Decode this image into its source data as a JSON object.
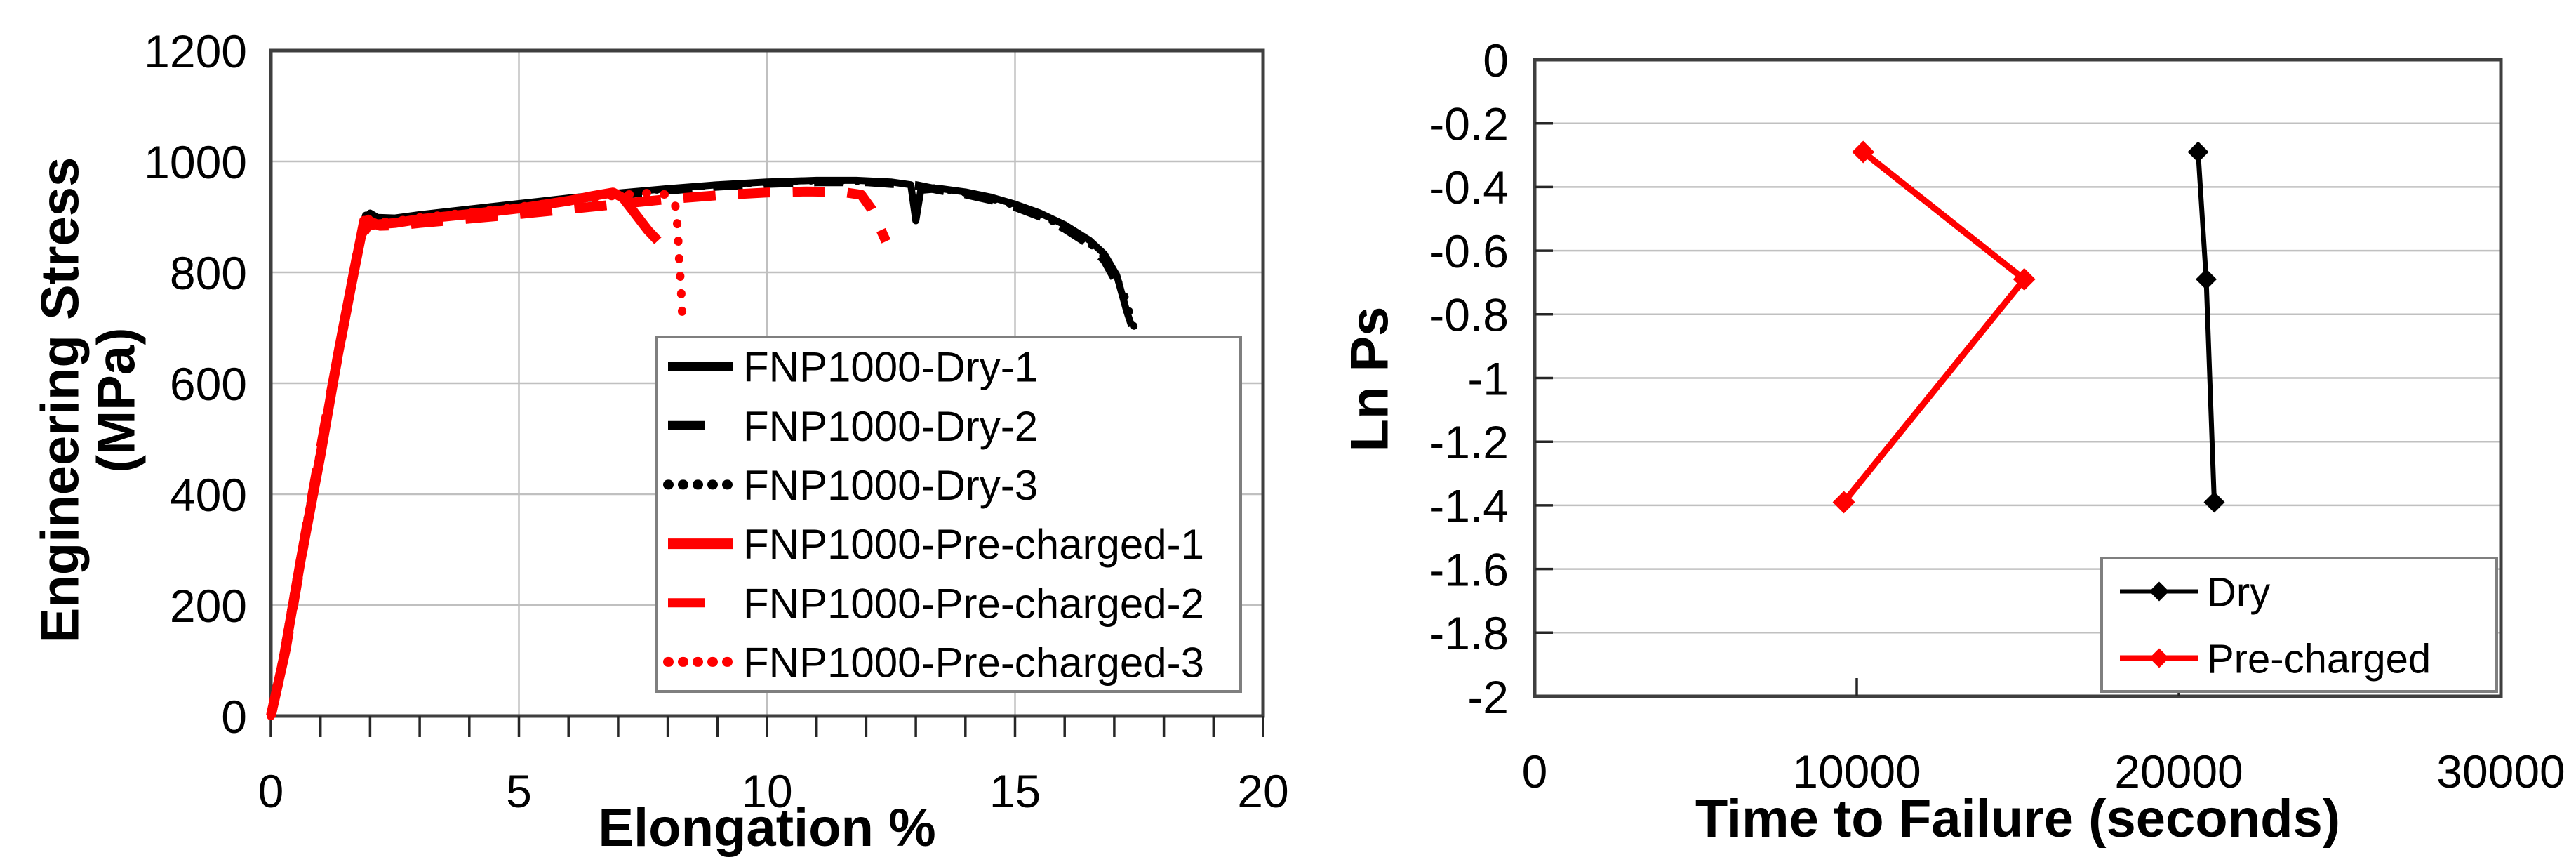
{
  "figure": {
    "description": "Two-panel tensile test figure",
    "background": "#ffffff"
  },
  "colors": {
    "dry_series": "#000000",
    "precharged_series": "#ff0000",
    "grid": "#c0c0c0",
    "frame": "#3f3f3f",
    "tick": "#262626",
    "text": "#000000",
    "legend_border": "#7f7f7f",
    "legend_bg": "#ffffff"
  },
  "chart_data": [
    {
      "id": "stress-strain",
      "type": "line",
      "title": "",
      "xlabel": "Elongation %",
      "ylabel": "Engineering Stress",
      "ylabel_line2": "(MPa)",
      "xlim": [
        0,
        20
      ],
      "ylim": [
        0,
        1200
      ],
      "xticks": [
        0,
        5,
        10,
        15,
        20
      ],
      "xtick_labels": [
        "0",
        "5",
        "10",
        "15",
        "20"
      ],
      "x_minor_step": 1,
      "yticks": [
        0,
        200,
        400,
        600,
        800,
        1000,
        1200
      ],
      "ytick_labels": [
        "0",
        "200",
        "400",
        "600",
        "800",
        "1000",
        "1200"
      ],
      "grid": true,
      "grid_x": [
        5,
        10,
        15
      ],
      "grid_y": [
        200,
        400,
        600,
        800,
        1000
      ],
      "legend_position": "inside-bottom-right",
      "series": [
        {
          "name": "FNP1000-Dry-1",
          "color": "#000000",
          "style": "solid",
          "width": 10,
          "points": [
            [
              0,
              0
            ],
            [
              0.25,
              110
            ],
            [
              0.6,
              290
            ],
            [
              1.0,
              480
            ],
            [
              1.4,
              680
            ],
            [
              1.7,
              820
            ],
            [
              1.9,
              890
            ],
            [
              2.0,
              907
            ],
            [
              2.15,
              899
            ],
            [
              2.5,
              898
            ],
            [
              3,
              904
            ],
            [
              4,
              914
            ],
            [
              5,
              924
            ],
            [
              6,
              934
            ],
            [
              7,
              943
            ],
            [
              8,
              951
            ],
            [
              9,
              958
            ],
            [
              10,
              963
            ],
            [
              11,
              966
            ],
            [
              11.8,
              966
            ],
            [
              12.5,
              963
            ],
            [
              12.9,
              958
            ],
            [
              13.0,
              893
            ],
            [
              13.1,
              948
            ],
            [
              13.5,
              951
            ],
            [
              14,
              945
            ],
            [
              14.5,
              936
            ],
            [
              15,
              923
            ],
            [
              15.5,
              907
            ],
            [
              16,
              886
            ],
            [
              16.5,
              858
            ],
            [
              16.8,
              833
            ],
            [
              17.05,
              795
            ],
            [
              17.25,
              730
            ],
            [
              17.35,
              703
            ]
          ]
        },
        {
          "name": "FNP1000-Dry-2",
          "color": "#000000",
          "style": "dashed",
          "width": 12,
          "points": [
            [
              0,
              0
            ],
            [
              0.25,
              105
            ],
            [
              0.6,
              285
            ],
            [
              1.0,
              475
            ],
            [
              1.4,
              672
            ],
            [
              1.7,
              815
            ],
            [
              1.92,
              902
            ],
            [
              2.1,
              894
            ],
            [
              2.5,
              895
            ],
            [
              3,
              901
            ],
            [
              4,
              911
            ],
            [
              5,
              921
            ],
            [
              6,
              931
            ],
            [
              7,
              940
            ],
            [
              8,
              948
            ],
            [
              9,
              955
            ],
            [
              10,
              960
            ],
            [
              11,
              963
            ],
            [
              12,
              963
            ],
            [
              13,
              957
            ],
            [
              13.5,
              948
            ],
            [
              14,
              941
            ],
            [
              14.5,
              931
            ],
            [
              15,
              918
            ],
            [
              15.5,
              901
            ],
            [
              16,
              879
            ],
            [
              16.4,
              856
            ],
            [
              16.8,
              822
            ],
            [
              17.0,
              790
            ]
          ]
        },
        {
          "name": "FNP1000-Dry-3",
          "color": "#000000",
          "style": "dotted",
          "width": 10,
          "points": [
            [
              0,
              0
            ],
            [
              0.25,
              115
            ],
            [
              0.6,
              295
            ],
            [
              1.0,
              485
            ],
            [
              1.4,
              685
            ],
            [
              1.7,
              825
            ],
            [
              1.95,
              905
            ],
            [
              2.12,
              897
            ],
            [
              2.5,
              897
            ],
            [
              3,
              903
            ],
            [
              4,
              913
            ],
            [
              5,
              923
            ],
            [
              6,
              933
            ],
            [
              7,
              942
            ],
            [
              8,
              950
            ],
            [
              9,
              957
            ],
            [
              10,
              962
            ],
            [
              11,
              965
            ],
            [
              12,
              964
            ],
            [
              13,
              958
            ],
            [
              13.6,
              949
            ],
            [
              14,
              943
            ],
            [
              14.5,
              933
            ],
            [
              15,
              920
            ],
            [
              15.5,
              903
            ],
            [
              16,
              881
            ],
            [
              16.5,
              852
            ],
            [
              16.9,
              818
            ],
            [
              17.2,
              762
            ],
            [
              17.45,
              688
            ]
          ]
        },
        {
          "name": "FNP1000-Pre-charged-1",
          "color": "#ff0000",
          "style": "solid",
          "width": 14,
          "points": [
            [
              0,
              0
            ],
            [
              0.25,
              100
            ],
            [
              0.6,
              280
            ],
            [
              1.0,
              470
            ],
            [
              1.35,
              650
            ],
            [
              1.65,
              790
            ],
            [
              1.88,
              893
            ],
            [
              2.05,
              886
            ],
            [
              2.5,
              889
            ],
            [
              3,
              896
            ],
            [
              4,
              905
            ],
            [
              5,
              915
            ],
            [
              6,
              929
            ],
            [
              6.5,
              938
            ],
            [
              6.9,
              944
            ],
            [
              7.1,
              934
            ],
            [
              7.35,
              905
            ],
            [
              7.6,
              876
            ],
            [
              7.8,
              857
            ]
          ]
        },
        {
          "name": "FNP1000-Pre-charged-2",
          "color": "#ff0000",
          "style": "dashed",
          "width": 14,
          "points": [
            [
              0,
              0
            ],
            [
              0.3,
              120
            ],
            [
              0.7,
              330
            ],
            [
              1.1,
              530
            ],
            [
              1.5,
              720
            ],
            [
              1.8,
              860
            ],
            [
              2.0,
              892
            ],
            [
              2.2,
              884
            ],
            [
              2.6,
              885
            ],
            [
              3,
              889
            ],
            [
              4,
              897
            ],
            [
              5,
              905
            ],
            [
              6,
              914
            ],
            [
              7,
              923
            ],
            [
              8,
              932
            ],
            [
              9,
              939
            ],
            [
              10,
              944
            ],
            [
              10.8,
              946
            ],
            [
              11.5,
              945
            ],
            [
              11.9,
              940
            ],
            [
              12.1,
              915
            ],
            [
              12.4,
              856
            ]
          ]
        },
        {
          "name": "FNP1000-Pre-charged-3",
          "color": "#ff0000",
          "style": "dotted",
          "width": 12,
          "points": [
            [
              0,
              0
            ],
            [
              0.25,
              108
            ],
            [
              0.6,
              288
            ],
            [
              1.0,
              478
            ],
            [
              1.4,
              668
            ],
            [
              1.7,
              812
            ],
            [
              1.93,
              898
            ],
            [
              2.1,
              890
            ],
            [
              2.5,
              892
            ],
            [
              3,
              899
            ],
            [
              4,
              908
            ],
            [
              5,
              918
            ],
            [
              6,
              929
            ],
            [
              7,
              939
            ],
            [
              7.6,
              943
            ],
            [
              8.0,
              940
            ],
            [
              8.15,
              922
            ],
            [
              8.2,
              880
            ],
            [
              8.22,
              840
            ],
            [
              8.25,
              795
            ],
            [
              8.28,
              750
            ],
            [
              8.3,
              706
            ]
          ]
        }
      ]
    },
    {
      "id": "ln-ps",
      "type": "line",
      "title": "",
      "xlabel": "Time to Failure (seconds)",
      "ylabel": "Ln Ps",
      "ylabel_line2": "",
      "xlim": [
        0,
        30000
      ],
      "ylim": [
        -2,
        0
      ],
      "xticks": [
        0,
        10000,
        20000,
        30000
      ],
      "xtick_labels": [
        "0",
        "10000",
        "20000",
        "30000"
      ],
      "yticks": [
        0,
        -0.2,
        -0.4,
        -0.6,
        -0.8,
        -1,
        -1.2,
        -1.4,
        -1.6,
        -1.8,
        -2
      ],
      "ytick_labels": [
        "0",
        "-0.2",
        "-0.4",
        "-0.6",
        "-0.8",
        "-1",
        "-1.2",
        "-1.4",
        "-1.6",
        "-1.8",
        "-2"
      ],
      "grid": true,
      "grid_x": [],
      "grid_y": [
        -0.2,
        -0.4,
        -0.6,
        -0.8,
        -1,
        -1.2,
        -1.4,
        -1.6,
        -1.8
      ],
      "legend_position": "inside-bottom-right",
      "series": [
        {
          "name": "Dry",
          "color": "#000000",
          "style": "solid",
          "width": 7,
          "marker": "diamond",
          "marker_size": 15,
          "points": [
            [
              20600,
              -0.29
            ],
            [
              20850,
              -0.69
            ],
            [
              21100,
              -1.39
            ]
          ]
        },
        {
          "name": "Pre-charged",
          "color": "#ff0000",
          "style": "solid",
          "width": 9,
          "marker": "diamond",
          "marker_size": 16,
          "points": [
            [
              10200,
              -0.29
            ],
            [
              15200,
              -0.69
            ],
            [
              9600,
              -1.39
            ]
          ]
        }
      ]
    }
  ]
}
